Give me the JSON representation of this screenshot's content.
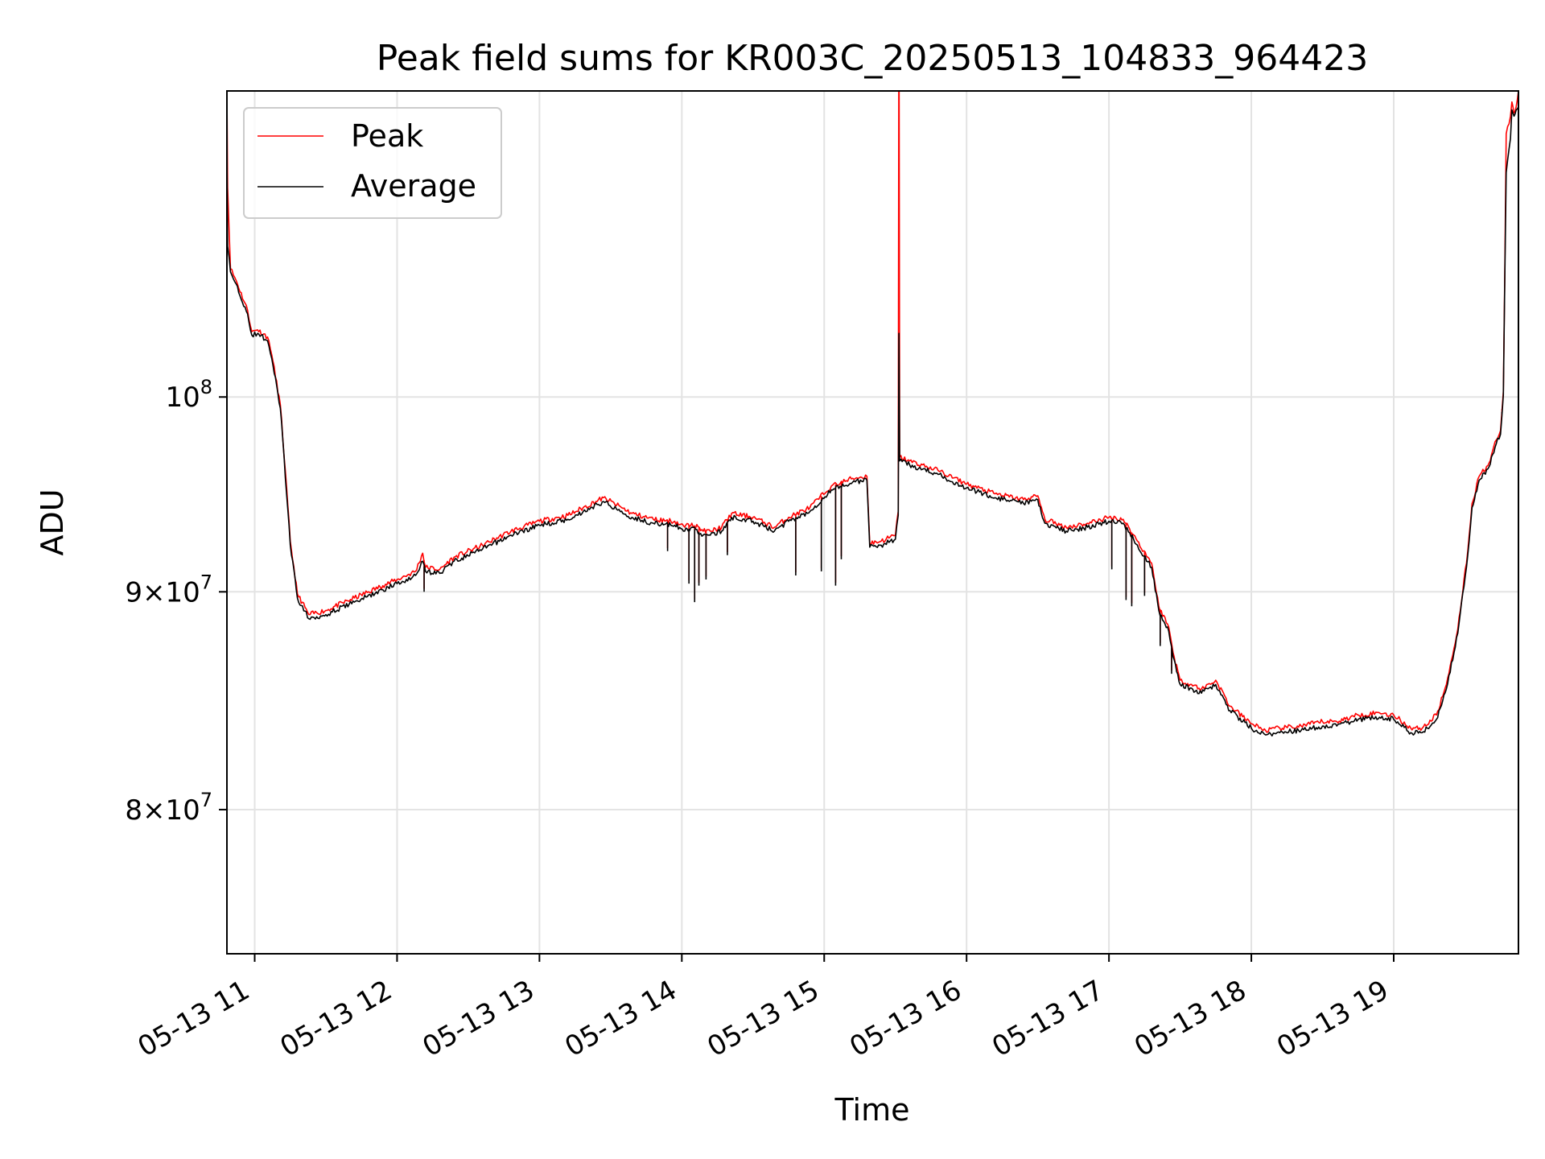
{
  "chart_data": {
    "type": "line",
    "title": "Peak field sums for KR003C_20250513_104833_964423",
    "xlabel": "Time",
    "ylabel": "ADU",
    "yscale": "log",
    "xlim_hours": [
      10.805,
      19.876
    ],
    "ylim": [
      74000000,
      118000000
    ],
    "grid": true,
    "legend_position": "top-left",
    "x_ticks": [
      {
        "hour": 11,
        "label": "05-13 11"
      },
      {
        "hour": 12,
        "label": "05-13 12"
      },
      {
        "hour": 13,
        "label": "05-13 13"
      },
      {
        "hour": 14,
        "label": "05-13 14"
      },
      {
        "hour": 15,
        "label": "05-13 15"
      },
      {
        "hour": 16,
        "label": "05-13 16"
      },
      {
        "hour": 17,
        "label": "05-13 17"
      },
      {
        "hour": 18,
        "label": "05-13 18"
      },
      {
        "hour": 19,
        "label": "05-13 19"
      }
    ],
    "y_ticks": [
      {
        "value": 100000000,
        "mantissa": "",
        "base": "10",
        "exp": "8"
      },
      {
        "value": 90000000,
        "mantissa": "9×",
        "base": "10",
        "exp": "7"
      },
      {
        "value": 80000000,
        "mantissa": "8×",
        "base": "10",
        "exp": "7"
      }
    ],
    "series": [
      {
        "name": "Peak",
        "color": "#ff0000",
        "points": [
          [
            10.805,
            118000000
          ],
          [
            10.81,
            112000000
          ],
          [
            10.83,
            107200000
          ],
          [
            10.87,
            106500000
          ],
          [
            10.95,
            104800000
          ],
          [
            10.98,
            103600000
          ],
          [
            11.02,
            103700000
          ],
          [
            11.09,
            103300000
          ],
          [
            11.12,
            102300000
          ],
          [
            11.18,
            99600000
          ],
          [
            11.25,
            92500000
          ],
          [
            11.3,
            89900000
          ],
          [
            11.38,
            88900000
          ],
          [
            11.5,
            89100000
          ],
          [
            11.7,
            89700000
          ],
          [
            11.9,
            90300000
          ],
          [
            12.0,
            90600000
          ],
          [
            12.13,
            91000000
          ],
          [
            12.18,
            91900000
          ],
          [
            12.2,
            91200000
          ],
          [
            12.3,
            91100000
          ],
          [
            12.4,
            91700000
          ],
          [
            12.6,
            92300000
          ],
          [
            12.8,
            93000000
          ],
          [
            13.0,
            93500000
          ],
          [
            13.2,
            93800000
          ],
          [
            13.45,
            94700000
          ],
          [
            13.65,
            93900000
          ],
          [
            13.8,
            93600000
          ],
          [
            13.95,
            93500000
          ],
          [
            14.02,
            93200000
          ],
          [
            14.07,
            93400000
          ],
          [
            14.15,
            93000000
          ],
          [
            14.2,
            93000000
          ],
          [
            14.28,
            93200000
          ],
          [
            14.35,
            93900000
          ],
          [
            14.5,
            93700000
          ],
          [
            14.65,
            93200000
          ],
          [
            14.75,
            93700000
          ],
          [
            14.9,
            94200000
          ],
          [
            15.05,
            95300000
          ],
          [
            15.2,
            95700000
          ],
          [
            15.3,
            95800000
          ],
          [
            15.32,
            92400000
          ],
          [
            15.4,
            92500000
          ],
          [
            15.5,
            92800000
          ],
          [
            15.52,
            94000000
          ],
          [
            15.525,
            126500000
          ],
          [
            15.53,
            96800000
          ],
          [
            15.6,
            96600000
          ],
          [
            15.8,
            96100000
          ],
          [
            16.0,
            95400000
          ],
          [
            16.2,
            94900000
          ],
          [
            16.4,
            94600000
          ],
          [
            16.5,
            94800000
          ],
          [
            16.55,
            93600000
          ],
          [
            16.7,
            93200000
          ],
          [
            16.85,
            93400000
          ],
          [
            17.0,
            93700000
          ],
          [
            17.1,
            93600000
          ],
          [
            17.2,
            92500000
          ],
          [
            17.3,
            91400000
          ],
          [
            17.35,
            89300000
          ],
          [
            17.42,
            88300000
          ],
          [
            17.45,
            87100000
          ],
          [
            17.5,
            85800000
          ],
          [
            17.65,
            85400000
          ],
          [
            17.75,
            85800000
          ],
          [
            17.85,
            84600000
          ],
          [
            18.0,
            83800000
          ],
          [
            18.1,
            83500000
          ],
          [
            18.2,
            83600000
          ],
          [
            18.35,
            83700000
          ],
          [
            18.5,
            83900000
          ],
          [
            18.6,
            83900000
          ],
          [
            18.75,
            84200000
          ],
          [
            18.9,
            84300000
          ],
          [
            19.0,
            84200000
          ],
          [
            19.12,
            83600000
          ],
          [
            19.2,
            83600000
          ],
          [
            19.3,
            84200000
          ],
          [
            19.37,
            85600000
          ],
          [
            19.45,
            88200000
          ],
          [
            19.52,
            92000000
          ],
          [
            19.55,
            94400000
          ],
          [
            19.6,
            95800000
          ],
          [
            19.67,
            96500000
          ],
          [
            19.72,
            97700000
          ],
          [
            19.75,
            98200000
          ],
          [
            19.77,
            100300000
          ],
          [
            19.78,
            106800000
          ],
          [
            19.79,
            115300000
          ],
          [
            19.82,
            116400000
          ],
          [
            19.83,
            117300000
          ],
          [
            19.845,
            116600000
          ],
          [
            19.86,
            117000000
          ],
          [
            19.876,
            118000000
          ]
        ]
      },
      {
        "name": "Average",
        "color": "#000000",
        "points": [
          [
            10.805,
            114300000
          ],
          [
            10.81,
            108500000
          ],
          [
            10.83,
            107000000
          ],
          [
            10.87,
            106300000
          ],
          [
            10.95,
            104600000
          ],
          [
            10.98,
            103400000
          ],
          [
            11.02,
            103500000
          ],
          [
            11.09,
            103100000
          ],
          [
            11.12,
            102100000
          ],
          [
            11.18,
            99400000
          ],
          [
            11.25,
            92300000
          ],
          [
            11.3,
            89700000
          ],
          [
            11.38,
            88700000
          ],
          [
            11.5,
            88900000
          ],
          [
            11.7,
            89500000
          ],
          [
            11.9,
            90100000
          ],
          [
            12.0,
            90400000
          ],
          [
            12.13,
            90800000
          ],
          [
            12.18,
            91500000
          ],
          [
            12.2,
            91000000
          ],
          [
            12.3,
            90900000
          ],
          [
            12.4,
            91500000
          ],
          [
            12.6,
            92100000
          ],
          [
            12.8,
            92800000
          ],
          [
            13.0,
            93300000
          ],
          [
            13.2,
            93600000
          ],
          [
            13.45,
            94500000
          ],
          [
            13.65,
            93700000
          ],
          [
            13.8,
            93400000
          ],
          [
            13.95,
            93300000
          ],
          [
            14.02,
            93000000
          ],
          [
            14.07,
            93200000
          ],
          [
            14.15,
            92800000
          ],
          [
            14.2,
            92800000
          ],
          [
            14.28,
            93000000
          ],
          [
            14.35,
            93700000
          ],
          [
            14.5,
            93500000
          ],
          [
            14.65,
            93000000
          ],
          [
            14.75,
            93500000
          ],
          [
            14.9,
            94000000
          ],
          [
            15.05,
            95100000
          ],
          [
            15.2,
            95500000
          ],
          [
            15.3,
            95600000
          ],
          [
            15.32,
            92200000
          ],
          [
            15.4,
            92300000
          ],
          [
            15.5,
            92600000
          ],
          [
            15.52,
            93800000
          ],
          [
            15.525,
            103500000
          ],
          [
            15.53,
            96600000
          ],
          [
            15.6,
            96400000
          ],
          [
            15.8,
            95900000
          ],
          [
            16.0,
            95200000
          ],
          [
            16.2,
            94700000
          ],
          [
            16.4,
            94400000
          ],
          [
            16.5,
            94600000
          ],
          [
            16.55,
            93400000
          ],
          [
            16.7,
            93000000
          ],
          [
            16.85,
            93200000
          ],
          [
            17.0,
            93500000
          ],
          [
            17.1,
            93400000
          ],
          [
            17.2,
            92300000
          ],
          [
            17.3,
            91200000
          ],
          [
            17.35,
            89100000
          ],
          [
            17.42,
            88100000
          ],
          [
            17.45,
            86900000
          ],
          [
            17.5,
            85600000
          ],
          [
            17.65,
            85200000
          ],
          [
            17.75,
            85600000
          ],
          [
            17.85,
            84400000
          ],
          [
            18.0,
            83600000
          ],
          [
            18.1,
            83300000
          ],
          [
            18.2,
            83400000
          ],
          [
            18.35,
            83500000
          ],
          [
            18.5,
            83700000
          ],
          [
            18.6,
            83700000
          ],
          [
            18.75,
            84000000
          ],
          [
            18.9,
            84100000
          ],
          [
            19.0,
            84000000
          ],
          [
            19.12,
            83400000
          ],
          [
            19.2,
            83400000
          ],
          [
            19.3,
            84000000
          ],
          [
            19.37,
            85400000
          ],
          [
            19.45,
            88000000
          ],
          [
            19.52,
            91800000
          ],
          [
            19.55,
            94200000
          ],
          [
            19.6,
            95600000
          ],
          [
            19.67,
            96300000
          ],
          [
            19.72,
            97500000
          ],
          [
            19.75,
            98000000
          ],
          [
            19.77,
            100100000
          ],
          [
            19.78,
            106500000
          ],
          [
            19.79,
            112900000
          ],
          [
            19.82,
            115000000
          ],
          [
            19.83,
            116800000
          ],
          [
            19.845,
            116400000
          ],
          [
            19.86,
            116800000
          ],
          [
            19.876,
            117000000
          ]
        ]
      }
    ],
    "dips": [
      {
        "hour": 12.19,
        "value": 90000000
      },
      {
        "hour": 13.9,
        "value": 92000000
      },
      {
        "hour": 14.05,
        "value": 90400000
      },
      {
        "hour": 14.09,
        "value": 89500000
      },
      {
        "hour": 14.12,
        "value": 90300000
      },
      {
        "hour": 14.17,
        "value": 90600000
      },
      {
        "hour": 14.32,
        "value": 91800000
      },
      {
        "hour": 14.8,
        "value": 90800000
      },
      {
        "hour": 14.98,
        "value": 91000000
      },
      {
        "hour": 15.08,
        "value": 90300000
      },
      {
        "hour": 15.12,
        "value": 91600000
      },
      {
        "hour": 17.02,
        "value": 91100000
      },
      {
        "hour": 17.12,
        "value": 89600000
      },
      {
        "hour": 17.16,
        "value": 89300000
      },
      {
        "hour": 17.25,
        "value": 89800000
      },
      {
        "hour": 17.36,
        "value": 87400000
      },
      {
        "hour": 17.44,
        "value": 86100000
      },
      {
        "hour": 19.76,
        "value": 99200000
      }
    ]
  }
}
